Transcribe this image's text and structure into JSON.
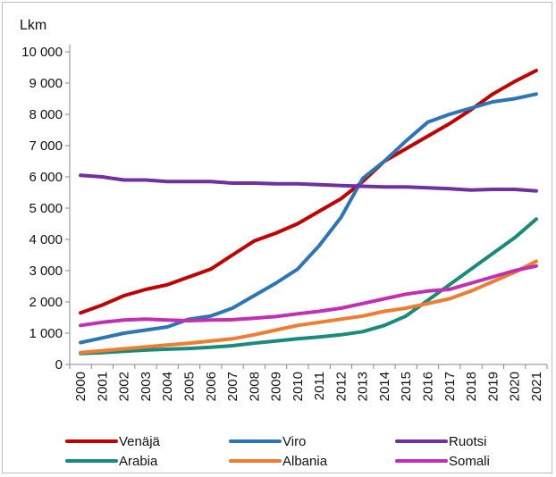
{
  "chart_data": {
    "type": "line",
    "ylabel": "Lkm",
    "ylim": [
      0,
      10000
    ],
    "yticks": [
      0,
      1000,
      2000,
      3000,
      4000,
      5000,
      6000,
      7000,
      8000,
      9000,
      10000
    ],
    "ytick_labels": [
      "0",
      "1 000",
      "2 000",
      "3 000",
      "4 000",
      "5 000",
      "6 000",
      "7 000",
      "8 000",
      "9 000",
      "10 000"
    ],
    "x": [
      "2000",
      "2001",
      "2002",
      "2003",
      "2004",
      "2005",
      "2006",
      "2007",
      "2008",
      "2009",
      "2010",
      "2011",
      "2012",
      "2013",
      "2014",
      "2015",
      "2016",
      "2017",
      "2018",
      "2019",
      "2020",
      "2021"
    ],
    "grid": false,
    "legend_position": "bottom",
    "series": [
      {
        "name": "Venäjä",
        "color": "#c00000",
        "values": [
          1650,
          1900,
          2200,
          2400,
          2550,
          2800,
          3050,
          3500,
          3950,
          4200,
          4500,
          4900,
          5300,
          5850,
          6500,
          6900,
          7300,
          7700,
          8150,
          8650,
          9050,
          9400
        ]
      },
      {
        "name": "Viro",
        "color": "#2e75b6",
        "values": [
          700,
          850,
          1000,
          1100,
          1200,
          1450,
          1550,
          1800,
          2200,
          2600,
          3050,
          3800,
          4700,
          5950,
          6500,
          7150,
          7750,
          8000,
          8200,
          8400,
          8500,
          8650
        ]
      },
      {
        "name": "Ruotsi",
        "color": "#7030a0",
        "values": [
          6050,
          6000,
          5900,
          5900,
          5850,
          5850,
          5850,
          5800,
          5800,
          5780,
          5780,
          5750,
          5720,
          5700,
          5680,
          5680,
          5650,
          5620,
          5580,
          5600,
          5600,
          5550
        ]
      },
      {
        "name": "Arabia",
        "color": "#1a8a7a",
        "values": [
          350,
          380,
          420,
          460,
          490,
          510,
          550,
          600,
          680,
          750,
          820,
          880,
          950,
          1050,
          1250,
          1550,
          2050,
          2550,
          3050,
          3550,
          4050,
          4650
        ]
      },
      {
        "name": "Albania",
        "color": "#ed7d31",
        "values": [
          380,
          440,
          500,
          560,
          620,
          680,
          750,
          820,
          950,
          1100,
          1250,
          1350,
          1450,
          1550,
          1700,
          1800,
          1950,
          2100,
          2350,
          2650,
          2950,
          3300
        ]
      },
      {
        "name": "Somali",
        "color": "#c030b0",
        "values": [
          1250,
          1350,
          1420,
          1450,
          1420,
          1400,
          1420,
          1430,
          1480,
          1530,
          1620,
          1700,
          1800,
          1950,
          2100,
          2250,
          2350,
          2400,
          2600,
          2800,
          3000,
          3150
        ]
      }
    ]
  }
}
